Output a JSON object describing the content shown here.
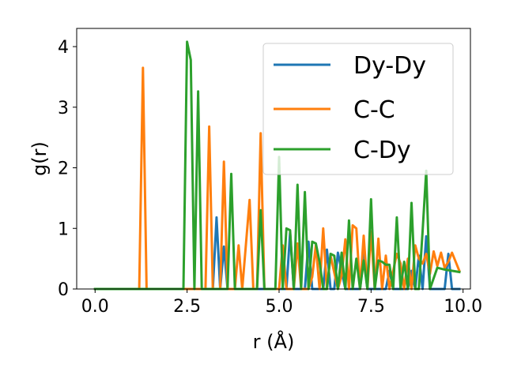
{
  "chart_data": {
    "type": "line",
    "xlabel": "r (Å)",
    "ylabel": "g(r)",
    "xlim": [
      -0.5,
      10.2
    ],
    "ylim": [
      0,
      4.3
    ],
    "xticks": [
      0.0,
      2.5,
      5.0,
      7.5,
      10.0
    ],
    "xtick_labels": [
      "0.0",
      "2.5",
      "5.0",
      "7.5",
      "10.0"
    ],
    "yticks": [
      0,
      1,
      2,
      3,
      4
    ],
    "ytick_labels": [
      "0",
      "1",
      "2",
      "3",
      "4"
    ],
    "grid": false,
    "legend_position": "top-right",
    "series": [
      {
        "name": "Dy-Dy",
        "color": "#1f77b4",
        "x": [
          0.0,
          1.0,
          2.0,
          3.0,
          3.2,
          3.3,
          3.4,
          3.5,
          3.6,
          3.7,
          4.0,
          5.0,
          5.2,
          5.3,
          5.4,
          5.5,
          5.7,
          5.8,
          5.9,
          6.0,
          6.2,
          6.3,
          6.4,
          6.5,
          6.6,
          6.8,
          6.9,
          7.0,
          7.2,
          7.3,
          7.4,
          7.5,
          7.6,
          7.8,
          7.9,
          8.0,
          8.1,
          8.2,
          8.3,
          8.5,
          8.6,
          8.7,
          8.8,
          8.9,
          9.0,
          9.1,
          9.3,
          9.5,
          9.6,
          9.7,
          9.9
        ],
        "y": [
          0.0,
          0.0,
          0.0,
          0.0,
          0.0,
          1.18,
          0.0,
          0.7,
          0.0,
          0.0,
          0.0,
          0.0,
          0.0,
          0.93,
          0.0,
          0.0,
          0.0,
          0.78,
          0.0,
          0.0,
          0.0,
          0.65,
          0.0,
          0.0,
          0.6,
          0.0,
          0.0,
          0.0,
          0.0,
          0.58,
          0.0,
          0.0,
          0.0,
          0.0,
          0.0,
          0.3,
          0.0,
          0.0,
          0.0,
          0.0,
          0.3,
          0.0,
          0.55,
          0.0,
          0.87,
          0.0,
          0.0,
          0.0,
          0.58,
          0.0,
          0.0
        ]
      },
      {
        "name": "C-C",
        "color": "#ff7f0e",
        "x": [
          0.0,
          1.2,
          1.3,
          1.4,
          2.0,
          3.0,
          3.1,
          3.2,
          3.4,
          3.5,
          3.6,
          3.8,
          3.9,
          4.0,
          4.2,
          4.3,
          4.4,
          4.5,
          4.6,
          4.8,
          4.9,
          5.0,
          5.1,
          5.2,
          5.4,
          5.5,
          5.6,
          5.8,
          5.9,
          6.0,
          6.1,
          6.2,
          6.3,
          6.4,
          6.6,
          6.7,
          6.8,
          6.9,
          7.0,
          7.1,
          7.2,
          7.3,
          7.4,
          7.5,
          7.6,
          7.7,
          7.8,
          7.9,
          8.0,
          8.1,
          8.2,
          8.3,
          8.4,
          8.5,
          8.6,
          8.7,
          8.8,
          8.9,
          9.0,
          9.1,
          9.2,
          9.3,
          9.4,
          9.5,
          9.6,
          9.7,
          9.9
        ],
        "y": [
          0.0,
          0.0,
          3.65,
          0.0,
          0.0,
          0.0,
          2.68,
          0.0,
          0.0,
          2.1,
          0.0,
          0.0,
          0.72,
          0.0,
          1.47,
          0.0,
          0.0,
          2.57,
          0.0,
          0.0,
          0.0,
          0.0,
          0.72,
          0.0,
          0.0,
          0.75,
          0.0,
          0.0,
          0.2,
          0.72,
          0.0,
          1.0,
          0.0,
          0.55,
          0.0,
          0.22,
          0.82,
          0.0,
          1.05,
          1.0,
          0.0,
          0.88,
          0.0,
          0.95,
          0.0,
          0.83,
          0.0,
          0.55,
          0.0,
          0.3,
          0.58,
          0.42,
          0.0,
          0.5,
          0.0,
          0.72,
          0.5,
          0.42,
          0.58,
          0.25,
          0.62,
          0.38,
          0.6,
          0.35,
          0.45,
          0.6,
          0.3
        ]
      },
      {
        "name": "C-Dy",
        "color": "#2ca02c",
        "x": [
          0.0,
          1.0,
          2.0,
          2.4,
          2.5,
          2.6,
          2.7,
          2.8,
          2.9,
          3.5,
          3.6,
          3.7,
          3.8,
          4.3,
          4.4,
          4.5,
          4.6,
          4.9,
          5.0,
          5.1,
          5.2,
          5.3,
          5.4,
          5.5,
          5.6,
          5.7,
          5.8,
          5.9,
          6.0,
          6.1,
          6.2,
          6.3,
          6.4,
          6.5,
          6.6,
          6.7,
          6.8,
          6.9,
          7.0,
          7.1,
          7.2,
          7.3,
          7.4,
          7.5,
          7.6,
          7.7,
          7.8,
          7.9,
          8.0,
          8.1,
          8.2,
          8.3,
          8.4,
          8.5,
          8.6,
          8.7,
          8.8,
          8.9,
          9.0,
          9.1,
          9.3,
          9.5,
          9.9
        ],
        "y": [
          0.0,
          0.0,
          0.0,
          0.0,
          4.08,
          3.78,
          0.0,
          3.26,
          0.0,
          0.0,
          0.0,
          1.9,
          0.0,
          0.0,
          0.0,
          1.3,
          0.0,
          0.0,
          2.18,
          0.0,
          1.0,
          0.97,
          0.0,
          1.72,
          0.0,
          1.6,
          0.0,
          0.78,
          0.75,
          0.45,
          0.0,
          0.0,
          0.58,
          0.55,
          0.0,
          0.6,
          0.0,
          1.13,
          0.0,
          0.5,
          0.0,
          0.47,
          0.0,
          1.48,
          0.0,
          0.47,
          0.45,
          0.4,
          0.4,
          0.0,
          1.18,
          0.0,
          0.45,
          0.0,
          1.42,
          0.0,
          0.0,
          0.95,
          1.95,
          0.0,
          0.35,
          0.32,
          0.28
        ]
      }
    ]
  }
}
